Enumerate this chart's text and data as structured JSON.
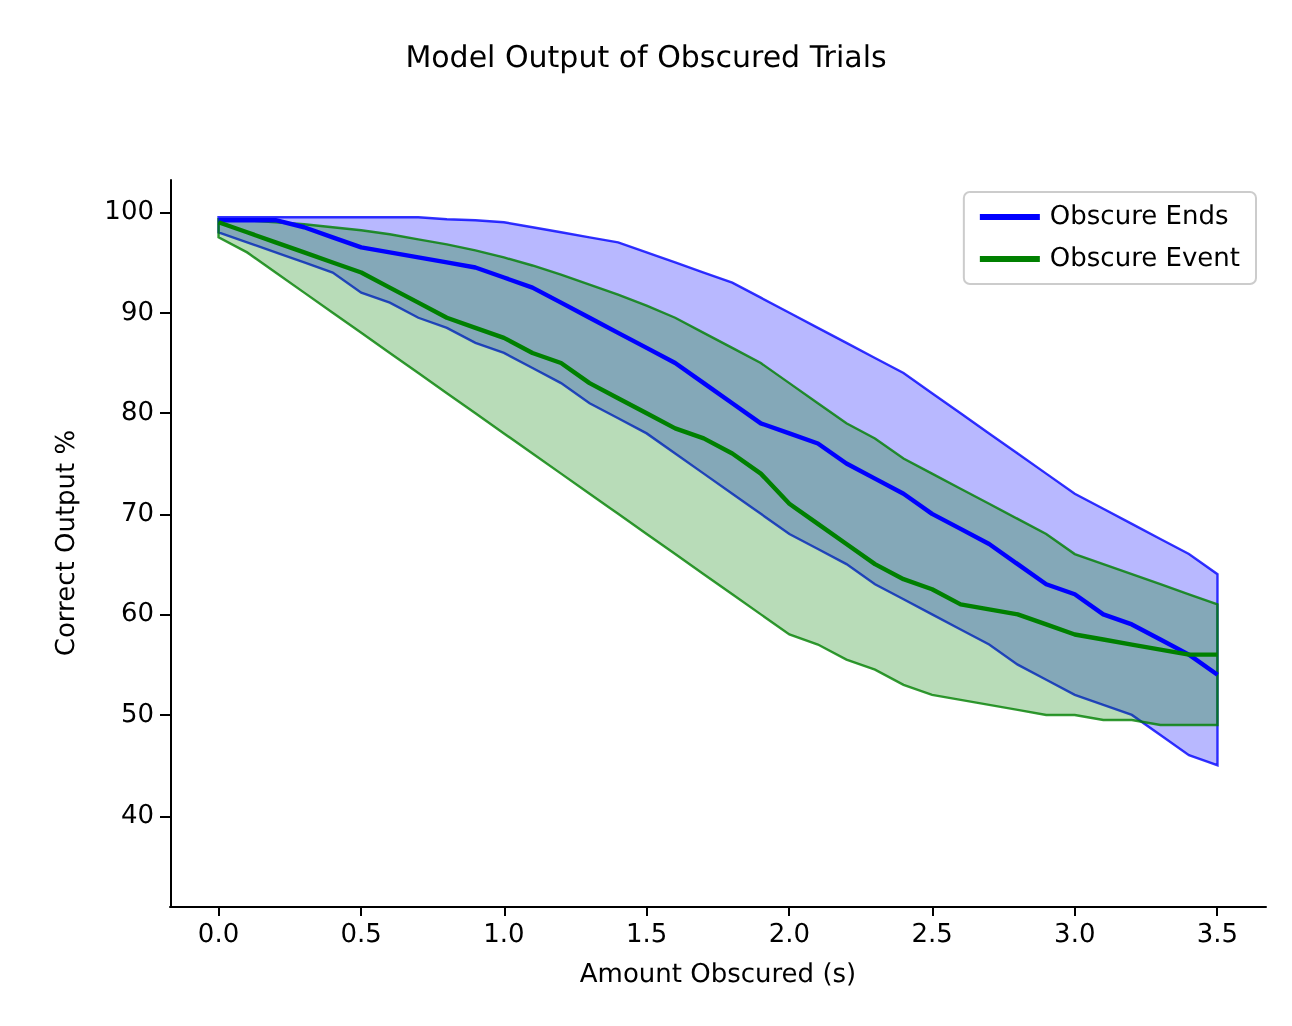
{
  "chart_data": {
    "type": "line",
    "title": "Model Output of Obscured Trials",
    "xlabel": "Amount Obscured (s)",
    "ylabel": "Correct Output %",
    "x": [
      0,
      0.1,
      0.2,
      0.3,
      0.4,
      0.5,
      0.6,
      0.7,
      0.8,
      0.9,
      1.0,
      1.1,
      1.2,
      1.3,
      1.4,
      1.5,
      1.6,
      1.7,
      1.8,
      1.9,
      2.0,
      2.1,
      2.2,
      2.3,
      2.4,
      2.5,
      2.6,
      2.7,
      2.8,
      2.9,
      3.0,
      3.1,
      3.2,
      3.3,
      3.4,
      3.5
    ],
    "series": [
      {
        "name": "Obscure Ends",
        "color": "#0000ff",
        "values": [
          99.2,
          99.2,
          99.2,
          98.5,
          97.5,
          96.5,
          96,
          95.5,
          95,
          94.5,
          93.5,
          92.5,
          91,
          89.5,
          88,
          86.5,
          85,
          83,
          81,
          79,
          78,
          77,
          75,
          73.5,
          72,
          70,
          68.5,
          67,
          65,
          63,
          62,
          60,
          59,
          57.5,
          56,
          54
        ],
        "lower": [
          98,
          97,
          96,
          95,
          94,
          92,
          91,
          89.5,
          88.5,
          87,
          86,
          84.5,
          83,
          81,
          79.5,
          78,
          76,
          74,
          72,
          70,
          68,
          66.5,
          65,
          63,
          61.5,
          60,
          58.5,
          57,
          55,
          53.5,
          52,
          51,
          50,
          48,
          46,
          45
        ],
        "upper": [
          99.5,
          99.5,
          99.5,
          99.5,
          99.5,
          99.5,
          99.5,
          99.5,
          99.3,
          99.2,
          99,
          98.5,
          98,
          97.5,
          97,
          96,
          95,
          94,
          93,
          91.5,
          90,
          88.5,
          87,
          85.5,
          84,
          82,
          80,
          78,
          76,
          74,
          72,
          70.5,
          69,
          67.5,
          66,
          64
        ]
      },
      {
        "name": "Obscure Event",
        "color": "#008000",
        "values": [
          99,
          98,
          97,
          96,
          95,
          94,
          92.5,
          91,
          89.5,
          88.5,
          87.5,
          86,
          85,
          83,
          81.5,
          80,
          78.5,
          77.5,
          76,
          74,
          71,
          69,
          67,
          65,
          63.5,
          62.5,
          61,
          60.5,
          60,
          59,
          58,
          57.5,
          57,
          56.5,
          56,
          56
        ],
        "lower": [
          97.5,
          96,
          94,
          92,
          90,
          88,
          86,
          84,
          82,
          80,
          78,
          76,
          74,
          72,
          70,
          68,
          66,
          64,
          62,
          60,
          58,
          57,
          55.5,
          54.5,
          53,
          52,
          51.5,
          51,
          50.5,
          50,
          50,
          49.5,
          49.5,
          49,
          49,
          49
        ],
        "upper": [
          99.3,
          99.2,
          99,
          98.8,
          98.5,
          98.2,
          97.8,
          97.3,
          96.8,
          96.2,
          95.5,
          94.7,
          93.8,
          92.8,
          91.8,
          90.7,
          89.5,
          88,
          86.5,
          85,
          83,
          81,
          79,
          77.5,
          75.5,
          74,
          72.5,
          71,
          69.5,
          68,
          66,
          65,
          64,
          63,
          62,
          61
        ]
      }
    ],
    "xlim": [
      -0.17,
      3.67
    ],
    "xticks": [
      {
        "value": 0,
        "label": "0.0"
      },
      0.5,
      {
        "value": 1,
        "label": "1.0"
      },
      1.5,
      {
        "value": 2,
        "label": "2.0"
      },
      2.5,
      {
        "value": 3,
        "label": "3.0"
      },
      3.5
    ],
    "ylim": [
      31,
      103.2
    ],
    "yticks": [
      40,
      50,
      60,
      70,
      80,
      90,
      100
    ],
    "grid": false,
    "legend": "top right",
    "marker": "none",
    "line_style": "solid"
  }
}
